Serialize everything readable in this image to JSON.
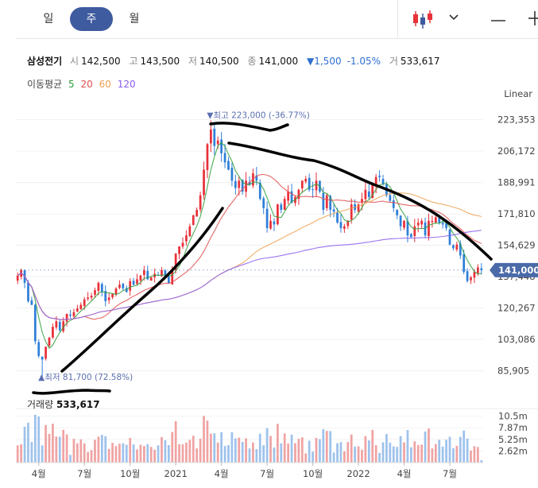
{
  "tabs": [
    {
      "label": "일",
      "active": false
    },
    {
      "label": "주",
      "active": true
    },
    {
      "label": "월",
      "active": false
    }
  ],
  "toolbar": {
    "chart_type_icon": "candlestick-icon",
    "dropdown_icon": "chevron-down-icon",
    "line_tool_icon": "horizontal-line-icon",
    "crosshair_icon": "crosshair-icon"
  },
  "stock": {
    "name": "삼성전기",
    "open_label": "시",
    "open": "142,500",
    "high_label": "고",
    "high": "143,500",
    "low_label": "저",
    "low": "140,500",
    "close_label": "종",
    "close": "141,000",
    "change": "▼1,500",
    "change_pct": "-1.05%",
    "volume_label": "거",
    "volume": "533,617"
  },
  "moving_average": {
    "label": "이동평균",
    "periods": [
      {
        "value": "5",
        "color": "#2e9e3a"
      },
      {
        "value": "20",
        "color": "#e04e4e"
      },
      {
        "value": "60",
        "color": "#f0a050"
      },
      {
        "value": "120",
        "color": "#8a5cf0"
      }
    ]
  },
  "scale_label": "Linear",
  "colors": {
    "up": "#e8313a",
    "down": "#2f7fd8",
    "vol_up": "#f0a3a3",
    "vol_down": "#9ec2ec",
    "accent": "#3f5b9f",
    "price_tag": "#4a6aa8"
  },
  "chart_data": {
    "type": "candlestick",
    "y_ticks": [
      "223,353",
      "206,172",
      "188,991",
      "171,810",
      "154,629",
      "137,448",
      "120,267",
      "103,086",
      "85,905"
    ],
    "ylim": [
      81700,
      227000
    ],
    "x_ticks": [
      "4월",
      "7월",
      "10월",
      "2021",
      "4월",
      "7월",
      "10월",
      "2022",
      "4월",
      "7월"
    ],
    "last_price": "141,000",
    "max_label": {
      "prefix": "최고",
      "value": "223,000",
      "pct": "(-36.77%)"
    },
    "min_label": {
      "prefix": "최저",
      "value": "81,700",
      "pct": "(72.58%)"
    },
    "volume_label": "거래량",
    "volume_value": "533,617",
    "volume_ticks": [
      "10.5m",
      "7.87m",
      "5.25m",
      "2.62m"
    ],
    "ma_periods": [
      5,
      20,
      60,
      120
    ],
    "weekly_close": [
      138000,
      141000,
      134000,
      124000,
      122000,
      102000,
      94000,
      92000,
      99000,
      104000,
      110000,
      113000,
      108000,
      113000,
      117000,
      116000,
      118000,
      120000,
      122000,
      125000,
      126000,
      127000,
      130000,
      134000,
      129000,
      124000,
      126000,
      128000,
      131000,
      133000,
      131000,
      129000,
      135000,
      133000,
      136000,
      138000,
      141000,
      136000,
      137000,
      139000,
      138000,
      141000,
      137000,
      134000,
      141000,
      150000,
      154000,
      156000,
      160000,
      165000,
      171000,
      174000,
      182000,
      196000,
      210000,
      218000,
      209000,
      212000,
      205000,
      200000,
      196000,
      190000,
      186000,
      190000,
      184000,
      190000,
      188000,
      194000,
      190000,
      180000,
      175000,
      164000,
      168000,
      166000,
      177000,
      174000,
      180000,
      184000,
      178000,
      181000,
      185000,
      190000,
      191000,
      185000,
      185000,
      190000,
      184000,
      174000,
      182000,
      174000,
      173000,
      167000,
      164000,
      165000,
      168000,
      177000,
      174000,
      177000,
      180000,
      185000,
      181000,
      188000,
      192000,
      192000,
      188000,
      182000,
      179000,
      175000,
      171000,
      165000,
      168000,
      160000,
      159000,
      165000,
      167000,
      168000,
      160000,
      168000,
      168000,
      170000,
      167000,
      166000,
      164000,
      155000,
      153000,
      155000,
      149000,
      140000,
      135000,
      137000,
      140000,
      142500,
      141000
    ]
  }
}
